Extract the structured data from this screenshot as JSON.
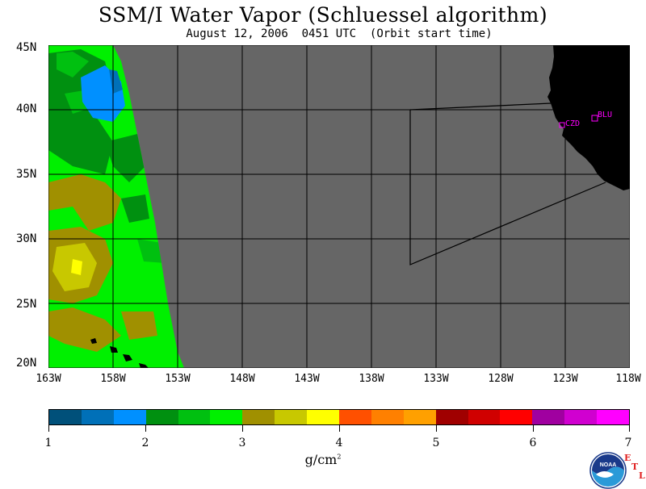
{
  "title": "SSM/I Water Vapor (Schluessel algorithm)",
  "subtitle": "August 12, 2006  0451 UTC  (Orbit start time)",
  "latitude_labels": [
    "45N",
    "40N",
    "35N",
    "30N",
    "25N",
    "20N"
  ],
  "longitude_labels": [
    "163W",
    "158W",
    "153W",
    "148W",
    "143W",
    "138W",
    "133W",
    "128W",
    "123W",
    "118W"
  ],
  "stations": [
    {
      "id": "CZD"
    },
    {
      "id": "BLU"
    }
  ],
  "colorbar": {
    "colors": [
      "#00507a",
      "#0070b8",
      "#0090ff",
      "#009010",
      "#00c010",
      "#00f000",
      "#a09000",
      "#c8c800",
      "#ffff00",
      "#ff5000",
      "#ff8000",
      "#ffa000",
      "#a00000",
      "#d00000",
      "#ff0000",
      "#a000a0",
      "#d000d0",
      "#ff00ff"
    ],
    "tick_labels": [
      "1",
      "2",
      "3",
      "4",
      "5",
      "6",
      "7"
    ],
    "units": "g/cm",
    "units_exponent": "2"
  },
  "colors": {
    "no_data": "#666666",
    "land": "#000000",
    "grid": "#000000",
    "station": "#ff00ff"
  },
  "logo": {
    "name": "NOAA",
    "text": "NOAA"
  },
  "corner_mark": [
    "E",
    "T",
    "L"
  ]
}
